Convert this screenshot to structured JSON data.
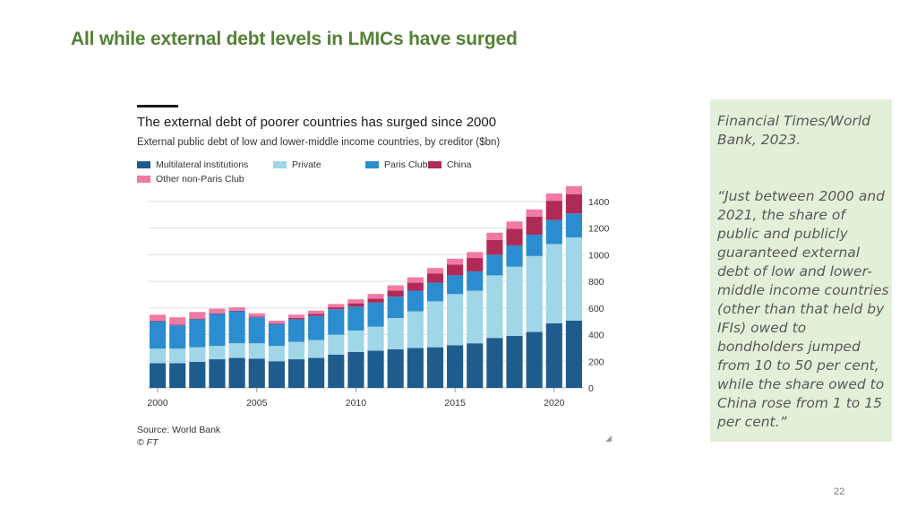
{
  "slide": {
    "title": "All while external debt levels in LMICs have surged",
    "page_number": "22"
  },
  "quote_box": {
    "source": "Financial Times/World Bank, 2023.",
    "quote": "“Just between 2000 and 2021, the share of public and publicly guaranteed external debt of low and lower-middle income countries (other than that held by IFIs) owed to bondholders jumped from 10 to 50 per cent, while the share owed to China rose from 1 to 15 per cent.”"
  },
  "chart_data": {
    "type": "bar",
    "stacked": true,
    "title": "The external debt of poorer countries has surged since 2000",
    "subtitle": "External public debt of low and lower-middle income countries, by creditor ($bn)",
    "source": "Source: World Bank",
    "credit": "© FT",
    "x": [
      2000,
      2001,
      2002,
      2003,
      2004,
      2005,
      2006,
      2007,
      2008,
      2009,
      2010,
      2011,
      2012,
      2013,
      2014,
      2015,
      2016,
      2017,
      2018,
      2019,
      2020,
      2021
    ],
    "x_tick_labels": [
      "2000",
      "2005",
      "2010",
      "2015",
      "2020"
    ],
    "y_ticks": [
      0,
      200,
      400,
      600,
      800,
      1000,
      1200,
      1400
    ],
    "ylim": [
      0,
      1500
    ],
    "y_axis_position": "right",
    "grid": true,
    "legend_position": "top-left",
    "series": [
      {
        "name": "Multilateral institutions",
        "color": "#1f5c8e",
        "values": [
          185,
          185,
          195,
          215,
          225,
          220,
          200,
          215,
          225,
          250,
          270,
          280,
          290,
          300,
          305,
          320,
          335,
          375,
          390,
          420,
          485,
          505
        ]
      },
      {
        "name": "Private",
        "color": "#9fd6e8",
        "values": [
          110,
          110,
          110,
          100,
          110,
          115,
          115,
          130,
          135,
          150,
          160,
          180,
          235,
          275,
          345,
          385,
          395,
          470,
          520,
          570,
          595,
          625
        ]
      },
      {
        "name": "Paris Club",
        "color": "#2b8dd0",
        "values": [
          205,
          175,
          210,
          240,
          240,
          195,
          165,
          170,
          180,
          190,
          180,
          180,
          160,
          155,
          140,
          140,
          145,
          155,
          160,
          160,
          180,
          180
        ]
      },
      {
        "name": "China",
        "color": "#b02a57",
        "values": [
          5,
          5,
          5,
          5,
          5,
          5,
          5,
          10,
          15,
          15,
          25,
          30,
          45,
          60,
          70,
          80,
          100,
          110,
          125,
          135,
          145,
          145
        ]
      },
      {
        "name": "Other non-Paris Club",
        "color": "#f07aa5",
        "values": [
          45,
          55,
          50,
          35,
          25,
          25,
          20,
          25,
          25,
          25,
          30,
          35,
          40,
          40,
          40,
          45,
          45,
          55,
          55,
          55,
          55,
          60
        ]
      }
    ]
  }
}
